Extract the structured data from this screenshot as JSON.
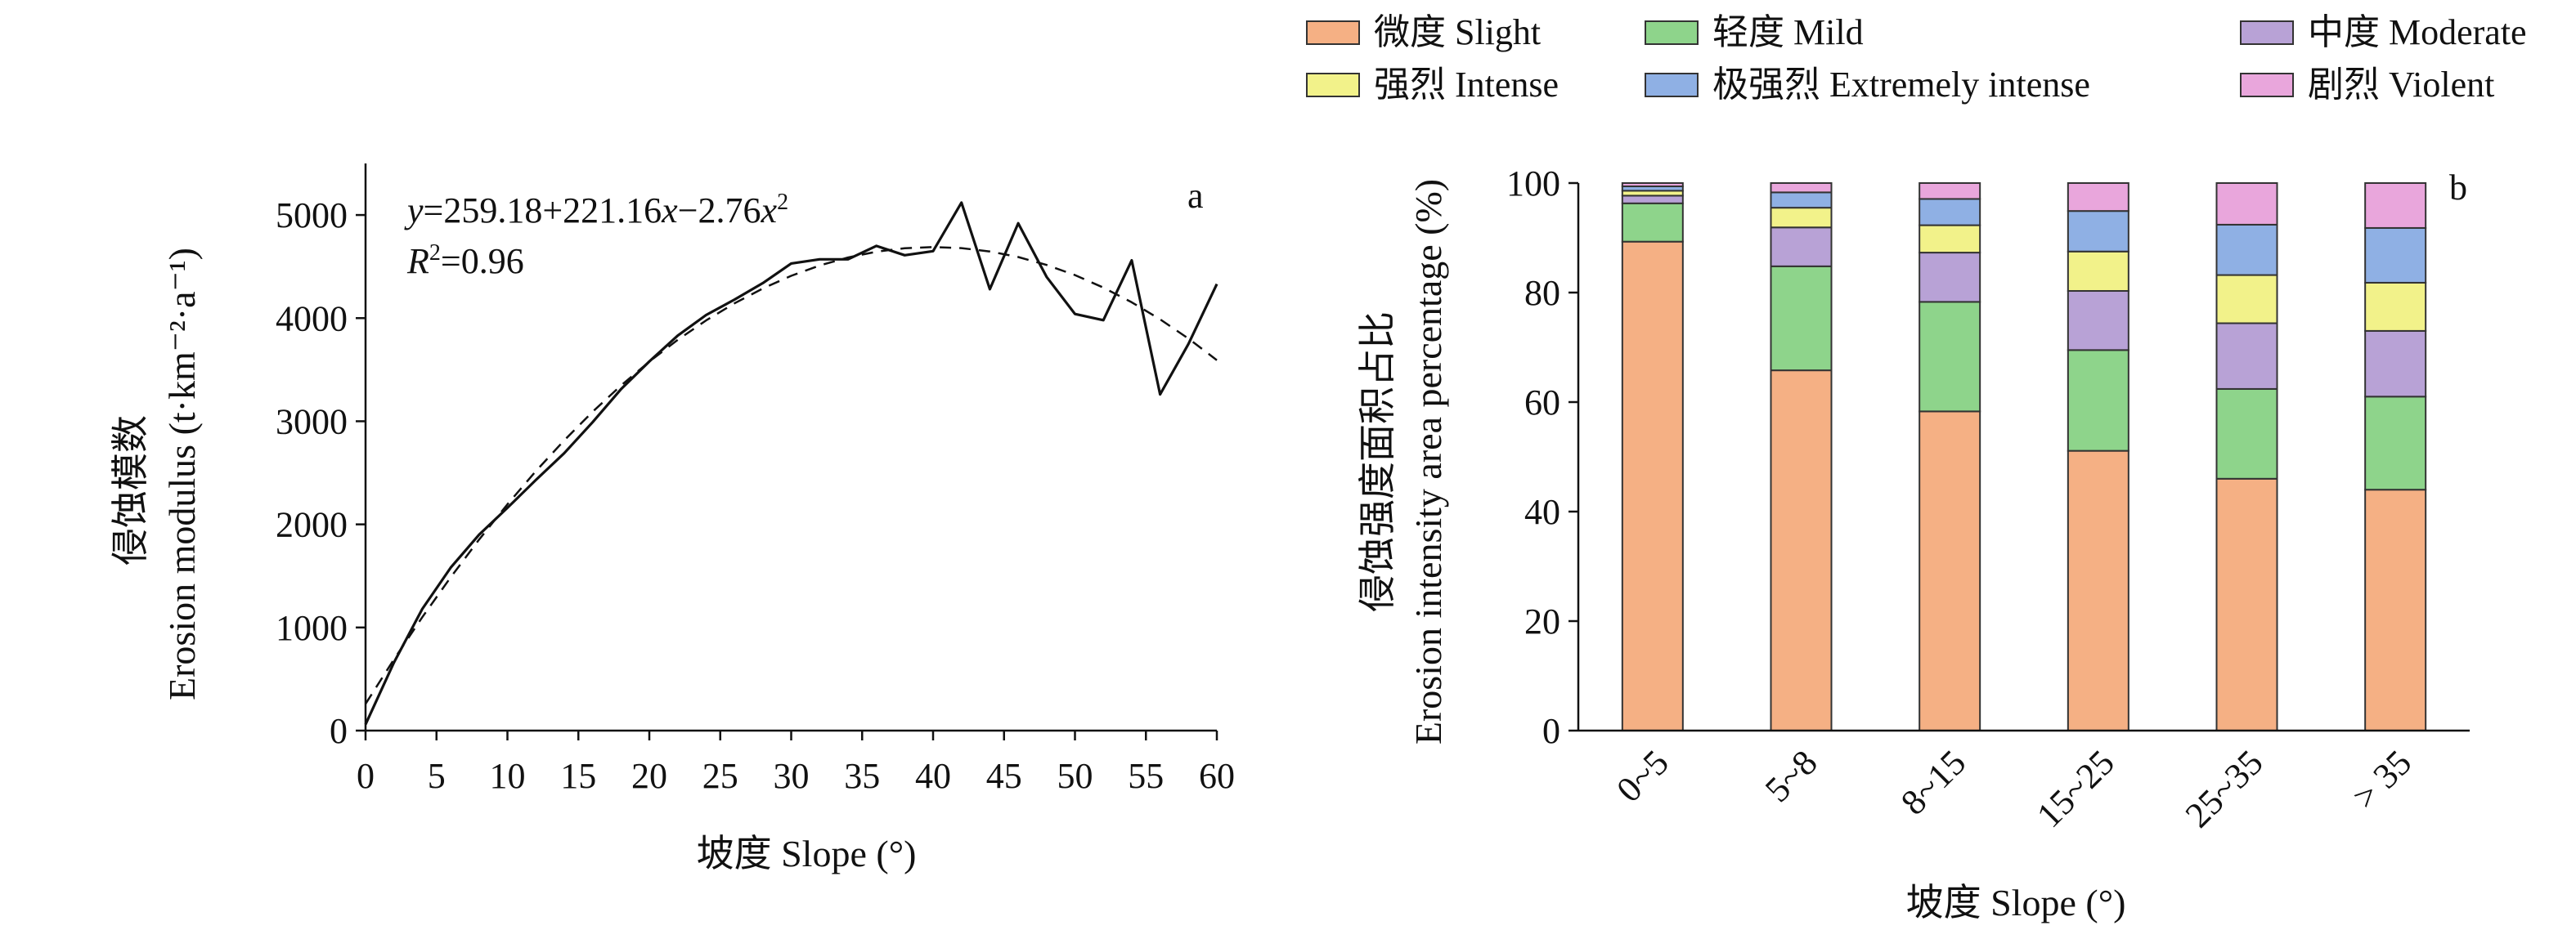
{
  "chart_data": [
    {
      "panel": "a",
      "type": "line",
      "equation": {
        "y_italic": "y",
        "eq_part1": "=259.18+221.16",
        "x_italic": "x",
        "eq_part2": "−2.76",
        "x_italic2": "x",
        "sup2": "2",
        "r_italic": "R",
        "r_sup": "2",
        "r_value": "=0.96"
      },
      "ylabel_cn": "侵蚀模数",
      "ylabel_en": "Erosion modulus (t·km⁻²·a⁻¹)",
      "xlabel": "坡度 Slope (°)",
      "xlim": [
        0,
        60
      ],
      "ylim": [
        0,
        5500
      ],
      "xticks": [
        0,
        5,
        10,
        15,
        20,
        25,
        30,
        35,
        40,
        45,
        50,
        55,
        60
      ],
      "yticks": [
        0,
        1000,
        2000,
        3000,
        4000,
        5000
      ],
      "series": [
        {
          "style": "solid",
          "x": [
            0,
            2,
            4,
            6,
            8,
            10,
            12,
            14,
            16,
            18,
            20,
            22,
            24,
            26,
            28,
            30,
            32,
            34,
            36,
            38,
            40,
            42,
            44,
            46,
            48,
            50,
            52,
            54,
            56,
            58,
            60
          ],
          "y": [
            60,
            660,
            1180,
            1580,
            1900,
            2160,
            2430,
            2690,
            2990,
            3310,
            3580,
            3830,
            4030,
            4180,
            4340,
            4530,
            4570,
            4570,
            4700,
            4610,
            4650,
            5120,
            4280,
            4920,
            4400,
            4040,
            3980,
            4560,
            3260,
            3750,
            4330
          ]
        },
        {
          "style": "dashed",
          "x": [
            0,
            2,
            4,
            6,
            8,
            10,
            12,
            14,
            16,
            18,
            20,
            22,
            24,
            26,
            28,
            30,
            32,
            34,
            36,
            38,
            40,
            42,
            44,
            46,
            48,
            50,
            52,
            54,
            56,
            58,
            60
          ],
          "y": [
            259.18,
            690.46,
            1099.66,
            1486.78,
            1851.82,
            2194.78,
            2515.66,
            2814.46,
            3091.18,
            3345.82,
            3578.38,
            3788.86,
            3977.26,
            4143.58,
            4287.82,
            4409.98,
            4510.06,
            4588.06,
            4643.98,
            4677.82,
            4689.58,
            4679.26,
            4646.86,
            4592.38,
            4515.82,
            4417.18,
            4296.46,
            4153.66,
            3988.78,
            3801.82,
            3592.78
          ]
        }
      ]
    },
    {
      "panel": "b",
      "type": "bar",
      "stacked": true,
      "ylabel_cn": "侵蚀强度面积占比",
      "ylabel_en": "Erosion intensity area percentage (%)",
      "xlabel": "坡度 Slope (°)",
      "ylim": [
        0,
        100
      ],
      "yticks": [
        0,
        20,
        40,
        60,
        80,
        100
      ],
      "categories": [
        "0~5",
        "5~8",
        "8~15",
        "15~25",
        "25~35",
        "> 35"
      ],
      "series": [
        {
          "name": "微度 Slight",
          "color": "#F5B084",
          "values": [
            89.3,
            65.8,
            58.3,
            51.1,
            46.0,
            44.0
          ]
        },
        {
          "name": "轻度 Mild",
          "color": "#8ED48B",
          "values": [
            7.0,
            19.0,
            20.0,
            18.4,
            16.4,
            17.0
          ]
        },
        {
          "name": "中度 Moderate",
          "color": "#B8A2D6",
          "values": [
            1.4,
            7.1,
            9.0,
            10.8,
            12.0,
            12.0
          ]
        },
        {
          "name": "强烈 Intense",
          "color": "#F2F28A",
          "values": [
            0.9,
            3.6,
            5.0,
            7.2,
            8.8,
            8.8
          ]
        },
        {
          "name": "极强烈 Extremely intense",
          "color": "#8FB0E4",
          "values": [
            0.8,
            2.8,
            4.8,
            7.4,
            9.2,
            10.0
          ]
        },
        {
          "name": "剧烈 Violent",
          "color": "#E9A6DC",
          "values": [
            0.6,
            1.7,
            2.9,
            5.1,
            7.6,
            8.2
          ]
        }
      ],
      "legend": {
        "position": "top",
        "columns": 3
      }
    }
  ],
  "labels": {
    "panel_a": "a",
    "panel_b": "b"
  }
}
